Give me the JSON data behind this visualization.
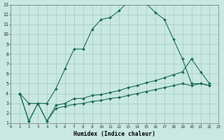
{
  "xlabel": "Humidex (Indice chaleur)",
  "bg_color": "#c8e8e0",
  "grid_color": "#a8cec8",
  "line_color": "#1a6b5a",
  "xlim": [
    0,
    23
  ],
  "ylim": [
    1,
    13
  ],
  "xticks": [
    0,
    1,
    2,
    3,
    4,
    5,
    6,
    7,
    8,
    9,
    10,
    11,
    12,
    13,
    14,
    15,
    16,
    17,
    18,
    19,
    20,
    21,
    22,
    23
  ],
  "yticks": [
    1,
    2,
    3,
    4,
    5,
    6,
    7,
    8,
    9,
    10,
    11,
    12,
    13
  ],
  "line1_x": [
    1,
    2,
    3,
    4,
    5,
    6,
    7,
    8,
    9,
    10,
    11,
    12,
    13,
    14,
    15,
    16,
    17,
    18,
    19,
    20,
    21,
    22
  ],
  "line1_y": [
    4,
    3,
    3,
    3,
    4.5,
    6.5,
    8.5,
    8.5,
    10.5,
    11.5,
    11.7,
    12.4,
    13.3,
    13.3,
    13.1,
    12.2,
    11.5,
    9.5,
    7.5,
    5.0,
    5.0,
    4.8
  ],
  "line2_x": [
    1,
    2,
    3,
    4,
    5,
    6,
    7,
    8,
    9,
    10,
    11,
    12,
    13,
    14,
    15,
    16,
    17,
    18,
    19,
    20,
    21,
    22
  ],
  "line2_y": [
    4,
    1.2,
    3,
    1.2,
    2.8,
    3.0,
    3.5,
    3.5,
    3.8,
    3.9,
    4.1,
    4.3,
    4.6,
    4.8,
    5.1,
    5.3,
    5.6,
    5.9,
    6.2,
    7.5,
    6.2,
    5.0
  ],
  "line3_x": [
    1,
    2,
    3,
    4,
    5,
    6,
    7,
    8,
    9,
    10,
    11,
    12,
    13,
    14,
    15,
    16,
    17,
    18,
    19,
    20,
    21,
    22
  ],
  "line3_y": [
    4,
    1.2,
    3,
    1.2,
    2.5,
    2.7,
    2.9,
    3.0,
    3.2,
    3.3,
    3.5,
    3.6,
    3.8,
    4.0,
    4.2,
    4.4,
    4.6,
    4.8,
    5.0,
    4.8,
    5.0,
    4.8
  ]
}
